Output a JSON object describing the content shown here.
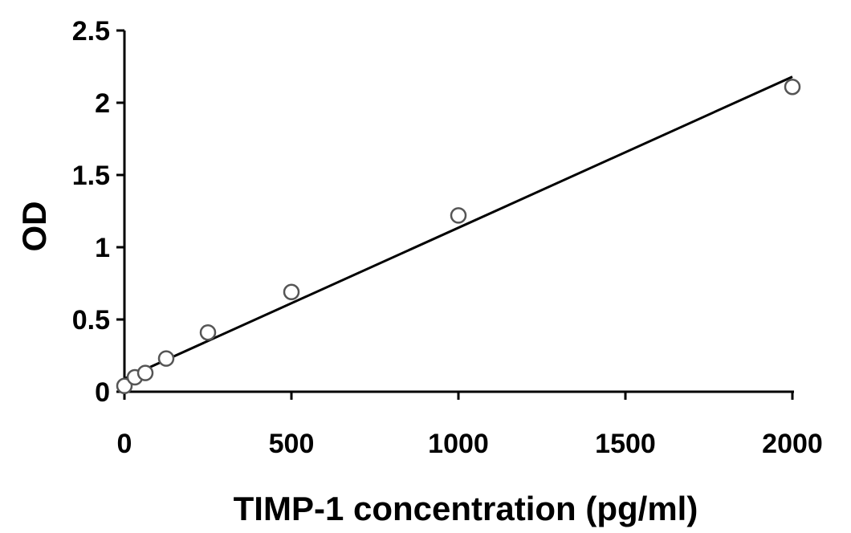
{
  "chart_data": {
    "type": "scatter",
    "title": "",
    "xlabel": "TIMP-1 concentration (pg/ml)",
    "ylabel": "OD",
    "xlim": [
      0,
      2000
    ],
    "ylim": [
      0,
      2.5
    ],
    "x_ticks": [
      0,
      500,
      1000,
      1500,
      2000
    ],
    "y_ticks": [
      0,
      0.5,
      1,
      1.5,
      2,
      2.5
    ],
    "x_tick_labels": [
      "0",
      "500",
      "1000",
      "1500",
      "2000"
    ],
    "y_tick_labels": [
      "0",
      "0.5",
      "1",
      "1.5",
      "2",
      "2.5"
    ],
    "grid": false,
    "legend": "none",
    "series": [
      {
        "points": [
          {
            "x": 0,
            "y": 0.04
          },
          {
            "x": 31.25,
            "y": 0.1
          },
          {
            "x": 62.5,
            "y": 0.13
          },
          {
            "x": 125,
            "y": 0.23
          },
          {
            "x": 250,
            "y": 0.41
          },
          {
            "x": 500,
            "y": 0.69
          },
          {
            "x": 1000,
            "y": 1.22
          },
          {
            "x": 2000,
            "y": 2.11
          }
        ]
      }
    ],
    "trendline": {
      "type": "linear",
      "start": {
        "x": 0,
        "y": 0.09
      },
      "end": {
        "x": 2000,
        "y": 2.18
      }
    },
    "colors": {
      "marker_stroke": "#555555",
      "marker_fill": "#ffffff",
      "line": "#000000",
      "axis": "#000000"
    }
  }
}
